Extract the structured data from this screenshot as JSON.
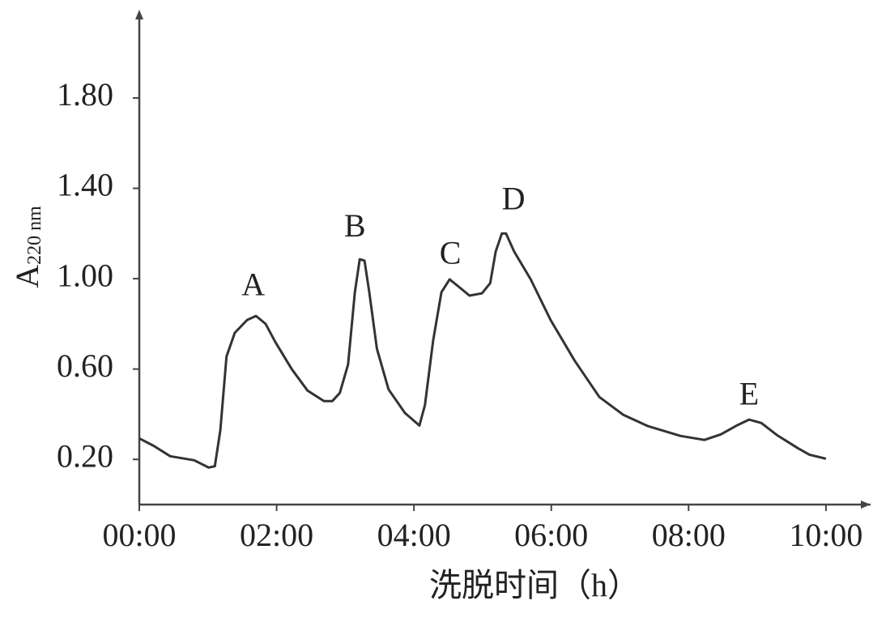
{
  "chart_data": {
    "type": "line",
    "ylabel": "A",
    "ylabel_sub": "220 nm",
    "xlabel": "洗脱时间（h）",
    "x": [
      0,
      0.21,
      0.45,
      0.8,
      1.01,
      1.1,
      1.18,
      1.27,
      1.39,
      1.57,
      1.7,
      1.84,
      1.98,
      2.22,
      2.45,
      2.69,
      2.81,
      2.92,
      3.04,
      3.14,
      3.21,
      3.28,
      3.35,
      3.46,
      3.63,
      3.87,
      4.08,
      4.16,
      4.28,
      4.4,
      4.52,
      4.63,
      4.81,
      4.99,
      5.11,
      5.19,
      5.28,
      5.34,
      5.46,
      5.7,
      5.99,
      6.34,
      6.7,
      7.05,
      7.41,
      7.88,
      8.23,
      8.47,
      8.7,
      8.88,
      9.06,
      9.29,
      9.59,
      9.76,
      10.0
    ],
    "series": [
      {
        "color": "#333333",
        "values": [
          0.293,
          0.26,
          0.214,
          0.196,
          0.164,
          0.17,
          0.33,
          0.655,
          0.76,
          0.817,
          0.835,
          0.8,
          0.72,
          0.6,
          0.505,
          0.458,
          0.458,
          0.494,
          0.62,
          0.94,
          1.086,
          1.08,
          0.94,
          0.69,
          0.51,
          0.405,
          0.35,
          0.44,
          0.727,
          0.94,
          0.997,
          0.97,
          0.925,
          0.935,
          0.98,
          1.12,
          1.2,
          1.2,
          1.12,
          0.997,
          0.817,
          0.637,
          0.476,
          0.397,
          0.347,
          0.304,
          0.286,
          0.311,
          0.35,
          0.376,
          0.361,
          0.307,
          0.25,
          0.221,
          0.203
        ]
      }
    ],
    "xlim": [
      0,
      10.65
    ],
    "ylim": [
      0,
      2.18
    ],
    "xticks": [
      {
        "value": 0,
        "label": "00:00"
      },
      {
        "value": 2,
        "label": "02:00"
      },
      {
        "value": 4,
        "label": "04:00"
      },
      {
        "value": 6,
        "label": "06:00"
      },
      {
        "value": 8,
        "label": "08:00"
      },
      {
        "value": 10,
        "label": "10:00"
      }
    ],
    "yticks": [
      {
        "value": 0.2,
        "label": "0.20"
      },
      {
        "value": 0.6,
        "label": "0.60"
      },
      {
        "value": 1.0,
        "label": "1.00"
      },
      {
        "value": 1.4,
        "label": "1.40"
      },
      {
        "value": 1.8,
        "label": "1.80"
      }
    ],
    "annotations": [
      {
        "text": "A",
        "x": 1.66,
        "y": 0.96
      },
      {
        "text": "B",
        "x": 3.14,
        "y": 1.22
      },
      {
        "text": "C",
        "x": 4.53,
        "y": 1.1
      },
      {
        "text": "D",
        "x": 5.45,
        "y": 1.34
      },
      {
        "text": "E",
        "x": 8.88,
        "y": 0.475
      }
    ]
  }
}
